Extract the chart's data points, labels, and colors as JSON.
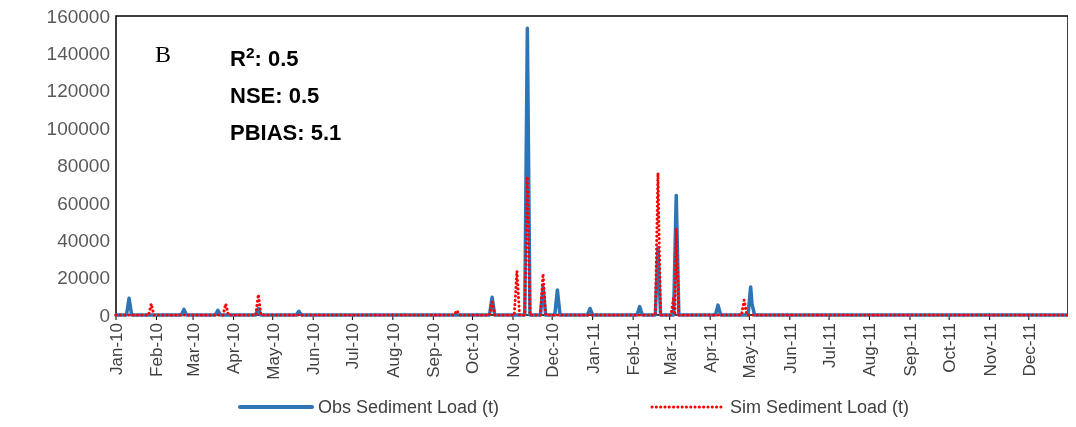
{
  "chart_data": {
    "type": "line",
    "annotations": [
      "B",
      "R$^{2}$: 0.5",
      "NSE: 0.5",
      "PBIAS: 5.1"
    ],
    "xlim": [
      "2010-01-01",
      "2011-12-31"
    ],
    "xticks": [
      {
        "value": "2010-01-01",
        "label": "Jan-10"
      },
      {
        "value": "2010-02-01",
        "label": "Feb-10"
      },
      {
        "value": "2010-03-01",
        "label": "Mar-10"
      },
      {
        "value": "2010-04-01",
        "label": "Apr-10"
      },
      {
        "value": "2010-05-01",
        "label": "May-10"
      },
      {
        "value": "2010-06-01",
        "label": "Jun-10"
      },
      {
        "value": "2010-07-01",
        "label": "Jul-10"
      },
      {
        "value": "2010-08-01",
        "label": "Aug-10"
      },
      {
        "value": "2010-09-01",
        "label": "Sep-10"
      },
      {
        "value": "2010-10-01",
        "label": "Oct-10"
      },
      {
        "value": "2010-11-01",
        "label": "Nov-10"
      },
      {
        "value": "2010-12-01",
        "label": "Dec-10"
      },
      {
        "value": "2011-01-01",
        "label": "Jan-11"
      },
      {
        "value": "2011-02-01",
        "label": "Feb-11"
      },
      {
        "value": "2011-03-01",
        "label": "Mar-11"
      },
      {
        "value": "2011-04-01",
        "label": "Apr-11"
      },
      {
        "value": "2011-05-01",
        "label": "May-11"
      },
      {
        "value": "2011-06-01",
        "label": "Jun-11"
      },
      {
        "value": "2011-07-01",
        "label": "Jul-11"
      },
      {
        "value": "2011-08-01",
        "label": "Aug-11"
      },
      {
        "value": "2011-09-01",
        "label": "Sep-11"
      },
      {
        "value": "2011-10-01",
        "label": "Oct-11"
      },
      {
        "value": "2011-11-01",
        "label": "Nov-11"
      },
      {
        "value": "2011-12-01",
        "label": "Dec-11"
      }
    ],
    "ylim": [
      0,
      160000
    ],
    "yticks": [
      0,
      20000,
      40000,
      60000,
      80000,
      100000,
      120000,
      140000,
      160000
    ],
    "grid": false,
    "legend": "bottom",
    "series": [
      {
        "name": "Obs Sediment Load (t)",
        "color": "#2e75b6",
        "line_style": "solid",
        "x": [
          "2010-01-01",
          "2010-01-09",
          "2010-01-11",
          "2010-01-13",
          "2010-02-20",
          "2010-02-22",
          "2010-02-24",
          "2010-03-18",
          "2010-03-20",
          "2010-03-22",
          "2010-04-18",
          "2010-04-20",
          "2010-04-22",
          "2010-05-19",
          "2010-05-21",
          "2010-05-23",
          "2010-10-14",
          "2010-10-16",
          "2010-10-18",
          "2010-11-10",
          "2010-11-12",
          "2010-11-14",
          "2010-11-22",
          "2010-11-24",
          "2010-11-26",
          "2010-12-03",
          "2010-12-05",
          "2010-12-07",
          "2010-12-28",
          "2010-12-30",
          "2011-01-01",
          "2011-02-04",
          "2011-02-06",
          "2011-02-08",
          "2011-02-18",
          "2011-02-20",
          "2011-02-22",
          "2011-03-04",
          "2011-03-06",
          "2011-03-08",
          "2011-04-05",
          "2011-04-07",
          "2011-04-09",
          "2011-04-30",
          "2011-05-02",
          "2011-05-03",
          "2011-05-05",
          "2011-12-31"
        ],
        "values": [
          0,
          0,
          9000,
          0,
          0,
          3000,
          0,
          0,
          2500,
          0,
          0,
          3500,
          0,
          0,
          2000,
          0,
          0,
          9500,
          0,
          0,
          153500,
          0,
          0,
          15000,
          0,
          0,
          13400,
          0,
          0,
          3500,
          0,
          0,
          4500,
          0,
          0,
          36000,
          0,
          0,
          64000,
          0,
          0,
          5300,
          0,
          0,
          15000,
          6000,
          0,
          0
        ]
      },
      {
        "name": "Sim Sediment Load (t)",
        "color": "#ff0000",
        "line_style": "dotted",
        "x": [
          "2010-01-01",
          "2010-01-26",
          "2010-01-28",
          "2010-01-30",
          "2010-03-24",
          "2010-03-26",
          "2010-03-28",
          "2010-04-18",
          "2010-04-20",
          "2010-04-22",
          "2010-09-17",
          "2010-09-19",
          "2010-09-21",
          "2010-10-14",
          "2010-10-16",
          "2010-10-18",
          "2010-11-02",
          "2010-11-04",
          "2010-11-06",
          "2010-11-10",
          "2010-11-12",
          "2010-11-14",
          "2010-11-22",
          "2010-11-24",
          "2010-11-26",
          "2011-02-18",
          "2011-02-20",
          "2011-02-22",
          "2011-03-02",
          "2011-03-04",
          "2011-03-05",
          "2011-03-06",
          "2011-03-08",
          "2011-04-25",
          "2011-04-27",
          "2011-04-29",
          "2011-12-31"
        ],
        "values": [
          0,
          0,
          6000,
          0,
          0,
          6000,
          0,
          0,
          11000,
          0,
          0,
          2500,
          0,
          0,
          7000,
          0,
          0,
          23500,
          0,
          0,
          74000,
          0,
          0,
          22000,
          0,
          0,
          76000,
          0,
          0,
          9500,
          0,
          46500,
          0,
          0,
          8000,
          0,
          0
        ]
      }
    ]
  }
}
